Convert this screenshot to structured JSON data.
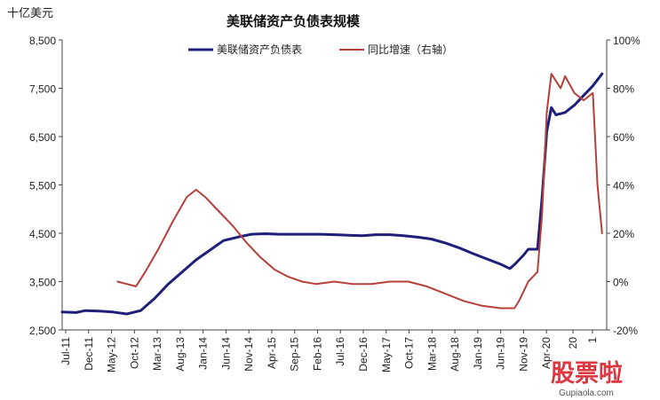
{
  "chart_data": {
    "type": "line",
    "title": "美联储资产负债表规模",
    "y_unit_label": "十亿美元",
    "x_tick_labels": [
      "Jul-11",
      "Dec-11",
      "May-12",
      "Oct-12",
      "Mar-13",
      "Aug-13",
      "Jan-14",
      "Jun-14",
      "Nov-14",
      "Apr-15",
      "Sep-15",
      "Feb-16",
      "Jul-16",
      "Dec-16",
      "May-17",
      "Oct-17",
      "Mar-18",
      "Aug-18",
      "Jan-19",
      "Jun-19",
      "Nov-19",
      "Apr-20",
      "20",
      "1"
    ],
    "y_left": {
      "ticks": [
        2500,
        3500,
        4500,
        5500,
        6500,
        7500,
        8500
      ],
      "tick_labels": [
        "2,500",
        "3,500",
        "4,500",
        "5,500",
        "6,500",
        "7,500",
        "8,500"
      ],
      "range": [
        2500,
        8500
      ]
    },
    "y_right": {
      "ticks": [
        -20,
        0,
        20,
        40,
        60,
        80,
        100
      ],
      "tick_labels": [
        "-20%",
        "0%",
        "20%",
        "40%",
        "60%",
        "80%",
        "100%"
      ],
      "range": [
        -20,
        100
      ]
    },
    "legend_position": "top-center",
    "series": [
      {
        "name": "美联储资产负债表",
        "axis": "left",
        "color": "#1f1f7a",
        "points": [
          [
            "2011-07",
            2870
          ],
          [
            "2011-10",
            2860
          ],
          [
            "2011-12",
            2900
          ],
          [
            "2012-03",
            2890
          ],
          [
            "2012-06",
            2870
          ],
          [
            "2012-09",
            2830
          ],
          [
            "2012-12",
            2900
          ],
          [
            "2013-03",
            3150
          ],
          [
            "2013-06",
            3450
          ],
          [
            "2013-09",
            3700
          ],
          [
            "2013-12",
            3950
          ],
          [
            "2014-03",
            4150
          ],
          [
            "2014-06",
            4350
          ],
          [
            "2014-09",
            4420
          ],
          [
            "2014-12",
            4480
          ],
          [
            "2015-03",
            4490
          ],
          [
            "2015-06",
            4480
          ],
          [
            "2015-09",
            4480
          ],
          [
            "2015-12",
            4480
          ],
          [
            "2016-03",
            4480
          ],
          [
            "2016-06",
            4470
          ],
          [
            "2016-09",
            4460
          ],
          [
            "2016-12",
            4450
          ],
          [
            "2017-03",
            4470
          ],
          [
            "2017-06",
            4470
          ],
          [
            "2017-09",
            4450
          ],
          [
            "2017-12",
            4420
          ],
          [
            "2018-03",
            4380
          ],
          [
            "2018-06",
            4300
          ],
          [
            "2018-09",
            4200
          ],
          [
            "2018-12",
            4080
          ],
          [
            "2019-03",
            3970
          ],
          [
            "2019-06",
            3860
          ],
          [
            "2019-08",
            3770
          ],
          [
            "2019-09",
            3850
          ],
          [
            "2019-10",
            3950
          ],
          [
            "2019-11",
            4050
          ],
          [
            "2019-12",
            4170
          ],
          [
            "2020-02",
            4170
          ],
          [
            "2020-03",
            5250
          ],
          [
            "2020-04",
            6600
          ],
          [
            "2020-05",
            7100
          ],
          [
            "2020-06",
            6950
          ],
          [
            "2020-08",
            7000
          ],
          [
            "2020-10",
            7150
          ],
          [
            "2020-12",
            7350
          ],
          [
            "2021-02",
            7550
          ],
          [
            "2021-04",
            7800
          ]
        ]
      },
      {
        "name": "同比增速（右轴）",
        "axis": "right",
        "color": "#b5403a",
        "points": [
          [
            "2012-07",
            0
          ],
          [
            "2012-09",
            -1
          ],
          [
            "2012-11",
            -2
          ],
          [
            "2013-01",
            4
          ],
          [
            "2013-04",
            14
          ],
          [
            "2013-07",
            25
          ],
          [
            "2013-10",
            35
          ],
          [
            "2013-12",
            38
          ],
          [
            "2014-02",
            35
          ],
          [
            "2014-05",
            29
          ],
          [
            "2014-08",
            23
          ],
          [
            "2014-11",
            16
          ],
          [
            "2015-02",
            10
          ],
          [
            "2015-05",
            5
          ],
          [
            "2015-08",
            2
          ],
          [
            "2015-11",
            0
          ],
          [
            "2016-02",
            -1
          ],
          [
            "2016-06",
            0
          ],
          [
            "2016-10",
            -1
          ],
          [
            "2017-02",
            -1
          ],
          [
            "2017-06",
            0
          ],
          [
            "2017-10",
            0
          ],
          [
            "2018-02",
            -2
          ],
          [
            "2018-06",
            -5
          ],
          [
            "2018-10",
            -8
          ],
          [
            "2019-02",
            -10
          ],
          [
            "2019-06",
            -11
          ],
          [
            "2019-09",
            -11
          ],
          [
            "2019-10",
            -8
          ],
          [
            "2019-11",
            -4
          ],
          [
            "2019-12",
            0
          ],
          [
            "2020-01",
            2
          ],
          [
            "2020-02",
            4
          ],
          [
            "2020-03",
            28
          ],
          [
            "2020-04",
            70
          ],
          [
            "2020-05",
            86
          ],
          [
            "2020-07",
            80
          ],
          [
            "2020-08",
            85
          ],
          [
            "2020-10",
            78
          ],
          [
            "2020-12",
            75
          ],
          [
            "2021-02",
            78
          ],
          [
            "2021-03",
            40
          ],
          [
            "2021-04",
            20
          ]
        ]
      }
    ]
  },
  "watermark": {
    "text": "股票啦",
    "url_text": "Gupiaola.com"
  }
}
